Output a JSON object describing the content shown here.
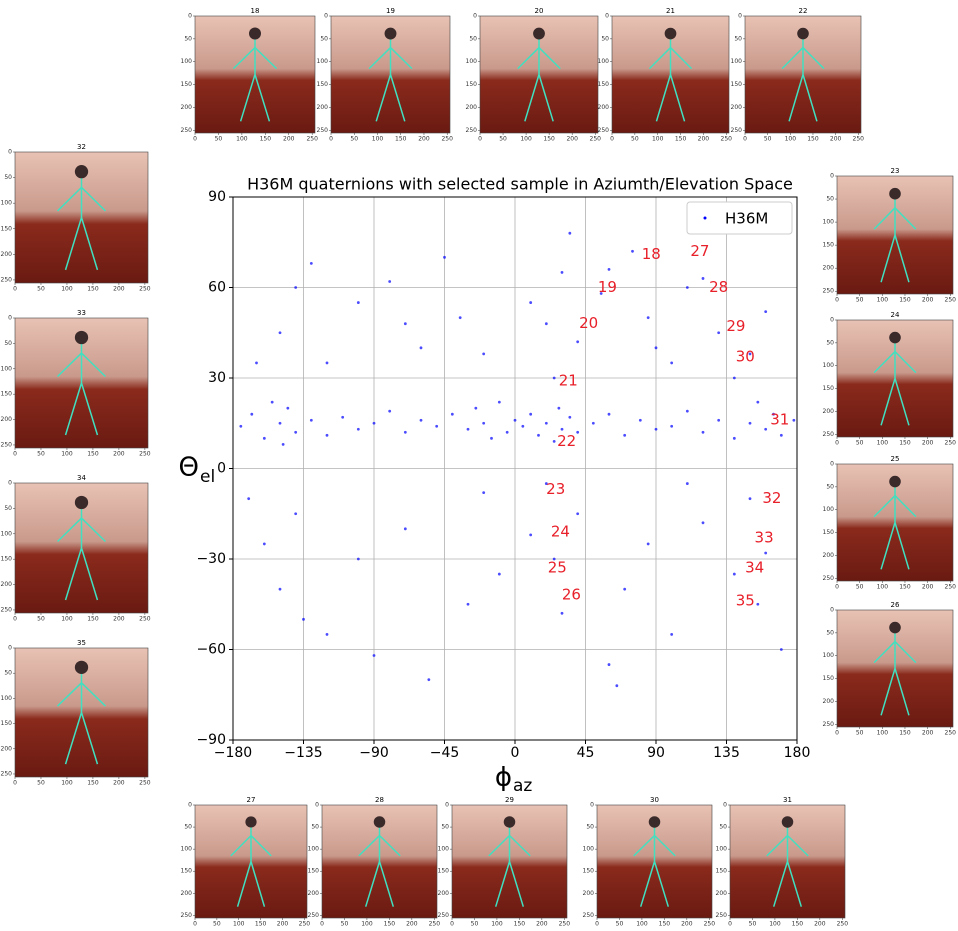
{
  "chart_data": {
    "type": "scatter",
    "title": "H36M quaternions with selected sample in Aziumth/Elevation Space",
    "x_label": "ϕ",
    "x_label_sub": "az",
    "y_label": "Θ",
    "y_label_sub": "el",
    "xlim": [
      -180,
      180
    ],
    "ylim": [
      -90,
      90
    ],
    "xticks": [
      {
        "value": -180,
        "label": "−180"
      },
      {
        "value": -135,
        "label": "−135"
      },
      {
        "value": -90,
        "label": "−90"
      },
      {
        "value": -45,
        "label": "−45"
      },
      0,
      45,
      90,
      135,
      180
    ],
    "yticks": [
      {
        "value": -90,
        "label": "−90"
      },
      {
        "value": -60,
        "label": "−60"
      },
      {
        "value": -30,
        "label": "−30"
      },
      0,
      30,
      60,
      90
    ],
    "grid": true,
    "legend": "upper right",
    "x": [
      -175,
      -168,
      -160,
      -155,
      -150,
      -148,
      -145,
      -140,
      -130,
      -120,
      -110,
      -100,
      -90,
      -80,
      -70,
      -60,
      -50,
      -40,
      -30,
      -25,
      -20,
      -15,
      -10,
      -5,
      0,
      5,
      10,
      15,
      20,
      25,
      28,
      30,
      35,
      40,
      50,
      60,
      70,
      80,
      90,
      100,
      110,
      120,
      130,
      140,
      150,
      155,
      160,
      165,
      170,
      178,
      -150,
      -140,
      -120,
      -100,
      -80,
      -60,
      -45,
      -35,
      -20,
      10,
      20,
      25,
      30,
      40,
      55,
      60,
      75,
      85,
      100,
      110,
      120,
      130,
      140,
      150,
      160,
      -165,
      -130,
      -70,
      35,
      90,
      -170,
      -160,
      -150,
      -140,
      -120,
      -100,
      -90,
      -70,
      -55,
      -30,
      -20,
      -10,
      10,
      20,
      25,
      30,
      40,
      60,
      70,
      85,
      100,
      120,
      140,
      150,
      155,
      160,
      170,
      -135,
      65,
      110
    ],
    "series": [
      {
        "name": "H36M",
        "color": "#0000ff",
        "values": [
          14,
          18,
          10,
          22,
          15,
          8,
          20,
          12,
          16,
          11,
          17,
          13,
          15,
          19,
          12,
          16,
          14,
          18,
          13,
          20,
          15,
          10,
          22,
          12,
          16,
          14,
          18,
          11,
          15,
          9,
          20,
          13,
          17,
          12,
          15,
          18,
          11,
          16,
          13,
          14,
          19,
          12,
          16,
          10,
          15,
          22,
          13,
          18,
          11,
          16,
          45,
          60,
          35,
          55,
          62,
          40,
          70,
          50,
          38,
          55,
          48,
          30,
          65,
          42,
          58,
          66,
          72,
          50,
          35,
          60,
          63,
          45,
          30,
          38,
          52,
          35,
          68,
          48,
          78,
          40,
          -10,
          -25,
          -40,
          -15,
          -55,
          -30,
          -62,
          -20,
          -70,
          -45,
          -8,
          -35,
          -22,
          -5,
          -30,
          -48,
          -15,
          -65,
          -40,
          -25,
          -55,
          -18,
          -35,
          -10,
          -45,
          -28,
          -60,
          -50,
          -72,
          -5
        ]
      }
    ],
    "annotations": [
      {
        "text": "18",
        "x": 87,
        "y": 71
      },
      {
        "text": "27",
        "x": 118,
        "y": 72
      },
      {
        "text": "19",
        "x": 59,
        "y": 60
      },
      {
        "text": "28",
        "x": 130,
        "y": 60
      },
      {
        "text": "20",
        "x": 47,
        "y": 48
      },
      {
        "text": "29",
        "x": 141,
        "y": 47
      },
      {
        "text": "30",
        "x": 147,
        "y": 37
      },
      {
        "text": "21",
        "x": 34,
        "y": 29
      },
      {
        "text": "31",
        "x": 169,
        "y": 16
      },
      {
        "text": "22",
        "x": 33,
        "y": 9
      },
      {
        "text": "23",
        "x": 26,
        "y": -7
      },
      {
        "text": "32",
        "x": 164,
        "y": -10
      },
      {
        "text": "24",
        "x": 29,
        "y": -21
      },
      {
        "text": "33",
        "x": 159,
        "y": -23
      },
      {
        "text": "25",
        "x": 27,
        "y": -33
      },
      {
        "text": "34",
        "x": 153,
        "y": -33
      },
      {
        "text": "26",
        "x": 36,
        "y": -42
      },
      {
        "text": "35",
        "x": 147,
        "y": -44
      }
    ]
  },
  "thumbnails": {
    "top": [
      "18",
      "19",
      "20",
      "21",
      "22"
    ],
    "left": [
      "32",
      "33",
      "34",
      "35"
    ],
    "right": [
      "23",
      "24",
      "25",
      "26"
    ],
    "bottom": [
      "27",
      "28",
      "29",
      "30",
      "31"
    ]
  },
  "thumbnail_ticks": [
    0,
    50,
    100,
    150,
    200,
    250
  ]
}
